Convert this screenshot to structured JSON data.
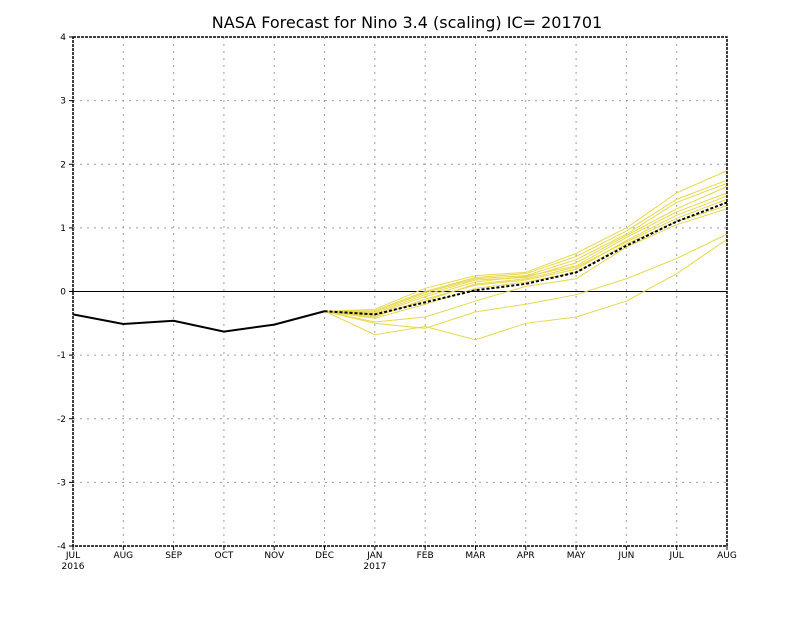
{
  "chart_data": {
    "type": "line",
    "title": "NASA Forecast for Nino 3.4 (scaling) IC= 201701",
    "xlabel": "",
    "ylabel": "",
    "categories": [
      "JUL",
      "AUG",
      "SEP",
      "OCT",
      "NOV",
      "DEC",
      "JAN",
      "FEB",
      "MAR",
      "APR",
      "MAY",
      "JUN",
      "JUL",
      "AUG"
    ],
    "year_labels": [
      "2016",
      "",
      "",
      "",
      "",
      "",
      "2017",
      "",
      "",
      "",
      "",
      "",
      "",
      ""
    ],
    "ylim": [
      -4,
      4
    ],
    "yticks": [
      -4,
      -3,
      -2,
      -1,
      0,
      1,
      2,
      3,
      4
    ],
    "ytick_labels": [
      "-4",
      "-3",
      "-2",
      "-1",
      "0",
      "1",
      "2",
      "3",
      "4"
    ],
    "grid": true,
    "grid_style": "dotted",
    "zero_line": true,
    "colors": {
      "observed": "#000000",
      "members": "#e8d84a",
      "mean": "#000000",
      "grid": "#a0a0a0",
      "zero_line": "#000000"
    },
    "observed": {
      "x_index": [
        0,
        1,
        2,
        3,
        4,
        5
      ],
      "values": [
        -0.36,
        -0.51,
        -0.46,
        -0.63,
        -0.52,
        -0.31
      ]
    },
    "ensemble_mean": {
      "x_index": [
        5,
        6,
        7,
        8,
        9,
        10,
        11,
        12,
        13
      ],
      "values": [
        -0.31,
        -0.36,
        -0.17,
        0.02,
        0.12,
        0.3,
        0.72,
        1.1,
        1.4
      ]
    },
    "members": [
      {
        "values": [
          -0.31,
          -0.28,
          0.05,
          0.25,
          0.3,
          0.6,
          1.0,
          1.55,
          1.9
        ]
      },
      {
        "values": [
          -0.31,
          -0.3,
          0.0,
          0.22,
          0.28,
          0.55,
          0.95,
          1.45,
          1.75
        ]
      },
      {
        "values": [
          -0.31,
          -0.32,
          -0.02,
          0.2,
          0.25,
          0.5,
          0.9,
          1.4,
          1.7
        ]
      },
      {
        "values": [
          -0.31,
          -0.34,
          -0.05,
          0.18,
          0.22,
          0.45,
          0.88,
          1.3,
          1.65
        ]
      },
      {
        "values": [
          -0.31,
          -0.36,
          -0.08,
          0.15,
          0.24,
          0.4,
          0.85,
          1.25,
          1.55
        ]
      },
      {
        "values": [
          -0.31,
          -0.4,
          -0.12,
          0.1,
          0.18,
          0.35,
          0.8,
          1.2,
          1.5
        ]
      },
      {
        "values": [
          -0.31,
          -0.38,
          -0.15,
          0.12,
          0.2,
          0.38,
          0.78,
          1.15,
          1.45
        ]
      },
      {
        "values": [
          -0.31,
          -0.42,
          -0.2,
          0.05,
          0.15,
          0.3,
          0.75,
          1.1,
          1.35
        ]
      },
      {
        "values": [
          -0.31,
          -0.48,
          -0.4,
          -0.15,
          0.08,
          0.2,
          0.7,
          1.05,
          1.3
        ]
      },
      {
        "values": [
          -0.31,
          -0.5,
          -0.58,
          -0.32,
          -0.2,
          -0.05,
          0.2,
          0.52,
          0.9
        ]
      },
      {
        "values": [
          -0.31,
          -0.68,
          -0.55,
          -0.76,
          -0.5,
          -0.4,
          -0.15,
          0.28,
          0.82
        ]
      }
    ]
  }
}
